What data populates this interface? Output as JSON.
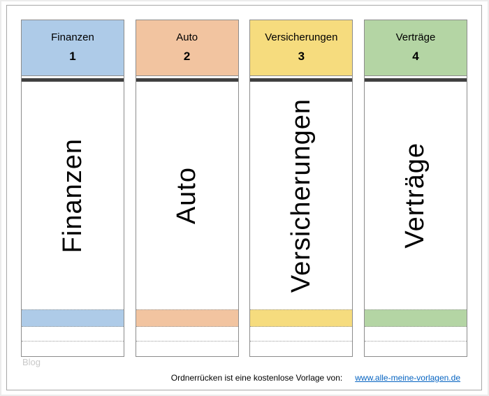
{
  "spines": [
    {
      "label": "Finanzen",
      "number": "1",
      "vertical_text": "Finanzen",
      "color": "#aecbe8"
    },
    {
      "label": "Auto",
      "number": "2",
      "vertical_text": "Auto",
      "color": "#f2c4a0"
    },
    {
      "label": "Versicherungen",
      "number": "3",
      "vertical_text": "Versicherungen",
      "color": "#f6dc7e"
    },
    {
      "label": "Verträge",
      "number": "4",
      "vertical_text": "Verträge",
      "color": "#b4d5a4"
    }
  ],
  "ridge_color": "#404040",
  "watermark": "Blog",
  "footer": {
    "note": "Ordnerrücken ist eine kostenlose Vorlage von:",
    "link": "www.alle-meine-vorlagen.de",
    "link_color": "#0563c1"
  }
}
